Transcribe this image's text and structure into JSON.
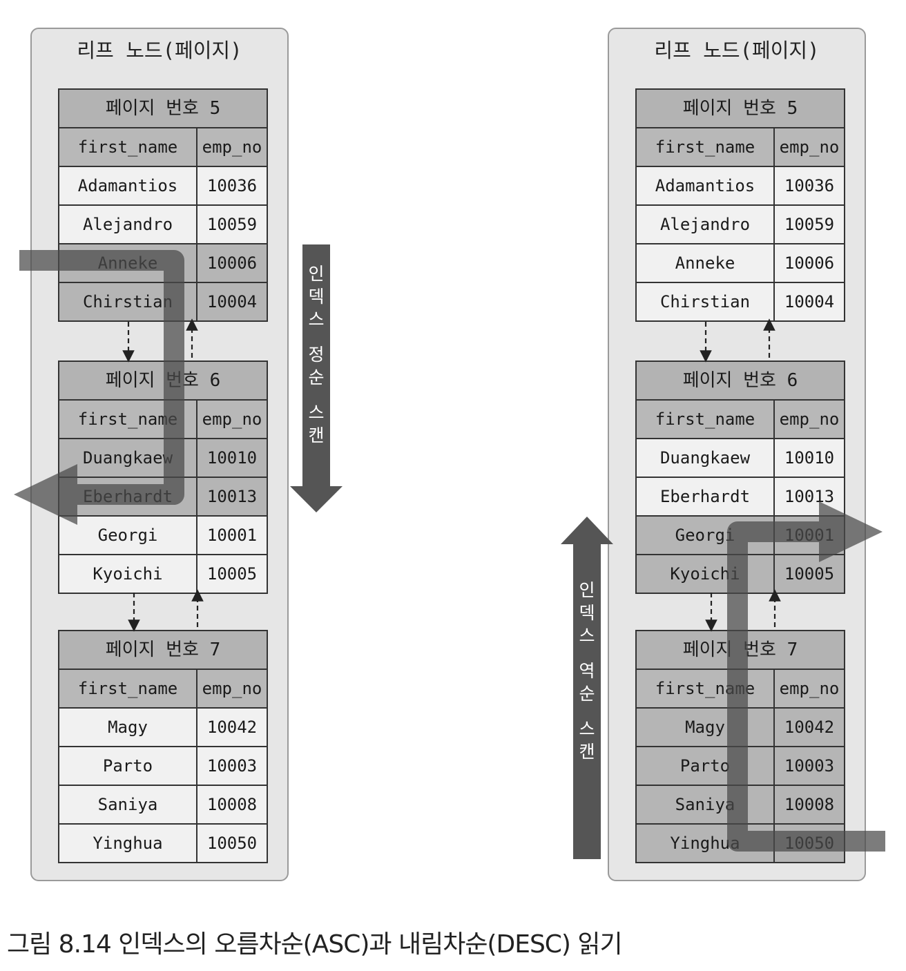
{
  "panels": [
    {
      "title": "리프 노드(페이지)",
      "pages": [
        {
          "title": "페이지 번호 5",
          "headers": [
            "first_name",
            "emp_no"
          ],
          "rows": [
            [
              "Adamantios",
              "10036"
            ],
            [
              "Alejandro",
              "10059"
            ],
            [
              "Anneke",
              "10006"
            ],
            [
              "Chirstian",
              "10004"
            ]
          ]
        },
        {
          "title": "페이지 번호 6",
          "headers": [
            "first_name",
            "emp_no"
          ],
          "rows": [
            [
              "Duangkaew",
              "10010"
            ],
            [
              "Eberhardt",
              "10013"
            ],
            [
              "Georgi",
              "10001"
            ],
            [
              "Kyoichi",
              "10005"
            ]
          ]
        },
        {
          "title": "페이지 번호 7",
          "headers": [
            "first_name",
            "emp_no"
          ],
          "rows": [
            [
              "Magy",
              "10042"
            ],
            [
              "Parto",
              "10003"
            ],
            [
              "Saniya",
              "10008"
            ],
            [
              "Yinghua",
              "10050"
            ]
          ]
        }
      ]
    },
    {
      "title": "리프 노드(페이지)",
      "pages": [
        {
          "title": "페이지 번호 5",
          "headers": [
            "first_name",
            "emp_no"
          ],
          "rows": [
            [
              "Adamantios",
              "10036"
            ],
            [
              "Alejandro",
              "10059"
            ],
            [
              "Anneke",
              "10006"
            ],
            [
              "Chirstian",
              "10004"
            ]
          ]
        },
        {
          "title": "페이지 번호 6",
          "headers": [
            "first_name",
            "emp_no"
          ],
          "rows": [
            [
              "Duangkaew",
              "10010"
            ],
            [
              "Eberhardt",
              "10013"
            ],
            [
              "Georgi",
              "10001"
            ],
            [
              "Kyoichi",
              "10005"
            ]
          ]
        },
        {
          "title": "페이지 번호 7",
          "headers": [
            "first_name",
            "emp_no"
          ],
          "rows": [
            [
              "Magy",
              "10042"
            ],
            [
              "Parto",
              "10003"
            ],
            [
              "Saniya",
              "10008"
            ],
            [
              "Yinghua",
              "10050"
            ]
          ]
        }
      ]
    }
  ],
  "arrows": {
    "asc_label": "인덱스 정순 스캔",
    "desc_label": "인덱스 역순 스캔"
  },
  "caption": "그림 8.14 인덱스의 오름차순(ASC)과 내림차순(DESC) 읽기",
  "colors": {
    "panel_bg": "#e6e6e6",
    "header_bg": "#b3b3b3",
    "row_bg": "#f1f1f1",
    "highlight_bg": "#b5b5b5",
    "arrow": "#555555"
  }
}
